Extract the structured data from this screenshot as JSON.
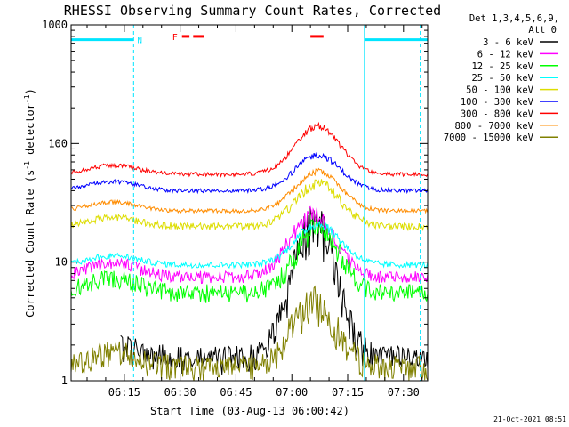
{
  "chart_data": {
    "type": "line",
    "title": "RHESSI Observing Summary Count Rates, Corrected",
    "xlabel": "Start Time (03-Aug-13 06:00:42)",
    "ylabel_main": "Corrected Count Rate (s",
    "ylabel_sup1": "-1",
    "ylabel_mid": " detector",
    "ylabel_sup2": "-1",
    "ylabel_end": ")",
    "yscale": "log",
    "ylim": [
      1,
      1000
    ],
    "y_ticks": [
      {
        "value": 1,
        "label": "1"
      },
      {
        "value": 10,
        "label": "10"
      },
      {
        "value": 100,
        "label": "100"
      },
      {
        "value": 1000,
        "label": "1000"
      }
    ],
    "xlim_minutes": [
      0.7,
      96.5
    ],
    "x_ticks": [
      {
        "minutes": 15,
        "label": "06:15"
      },
      {
        "minutes": 30,
        "label": "06:30"
      },
      {
        "minutes": 45,
        "label": "06:45"
      },
      {
        "minutes": 60,
        "label": "07:00"
      },
      {
        "minutes": 75,
        "label": "07:15"
      },
      {
        "minutes": 90,
        "label": "07:30"
      }
    ],
    "legend_header": [
      "Det 1,3,4,5,6,9,",
      "Att 0"
    ],
    "series": [
      {
        "name": "3 - 6 keV",
        "color": "#000000",
        "base": 1.5,
        "peak": 22,
        "peak_min": 66,
        "noise": 0.3,
        "floor": 1.4,
        "start": 14
      },
      {
        "name": "6 - 12 keV",
        "color": "#ff00ff",
        "base": 7.5,
        "peak": 25,
        "peak_min": 65.5,
        "noise": 0.12,
        "floor": 5.5,
        "start": 0
      },
      {
        "name": "12 - 25 keV",
        "color": "#00ff00",
        "base": 5.5,
        "peak": 19,
        "peak_min": 67,
        "noise": 0.18,
        "floor": 4.5,
        "start": 0
      },
      {
        "name": "25 - 50 keV",
        "color": "#00ffff",
        "base": 9.5,
        "peak": 21,
        "peak_min": 67,
        "noise": 0.06,
        "floor": 8,
        "start": 0
      },
      {
        "name": "50 - 100 keV",
        "color": "#dddd00",
        "base": 20,
        "peak": 46,
        "peak_min": 67,
        "noise": 0.07,
        "floor": 18,
        "start": 0
      },
      {
        "name": "100 - 300 keV",
        "color": "#0000ff",
        "base": 40,
        "peak": 80,
        "peak_min": 67,
        "noise": 0.04,
        "floor": 35,
        "start": 0
      },
      {
        "name": "300 - 800 keV",
        "color": "#ff0000",
        "base": 55,
        "peak": 140,
        "peak_min": 67,
        "noise": 0.04,
        "floor": 50,
        "start": 0
      },
      {
        "name": "800 - 7000 keV",
        "color": "#ff8c00",
        "base": 27,
        "peak": 58,
        "peak_min": 67,
        "noise": 0.04,
        "floor": 24,
        "start": 0
      },
      {
        "name": "7000 - 15000 keV",
        "color": "#808000",
        "base": 1.3,
        "peak": 4.5,
        "peak_min": 66,
        "noise": 0.25,
        "floor": 1.0,
        "start": 0
      }
    ],
    "night_bars": [
      {
        "start_min": 0.7,
        "end_min": 17.5
      },
      {
        "start_min": 79.5,
        "end_min": 96.5
      }
    ],
    "night_bar_value": 750,
    "day_markers_min": [
      17.5,
      94.5
    ],
    "day_solid_marker_min": 79.5,
    "night_label": "N",
    "night_label_min": 18.5,
    "flare_flag": {
      "label": "F",
      "value": 800,
      "segments": [
        {
          "start_min": 30.5,
          "end_min": 32.5
        },
        {
          "start_min": 33.5,
          "end_min": 36.5
        },
        {
          "start_min": 65,
          "end_min": 68.5
        }
      ]
    }
  },
  "timestamp": "21-Oct-2021 08:51"
}
